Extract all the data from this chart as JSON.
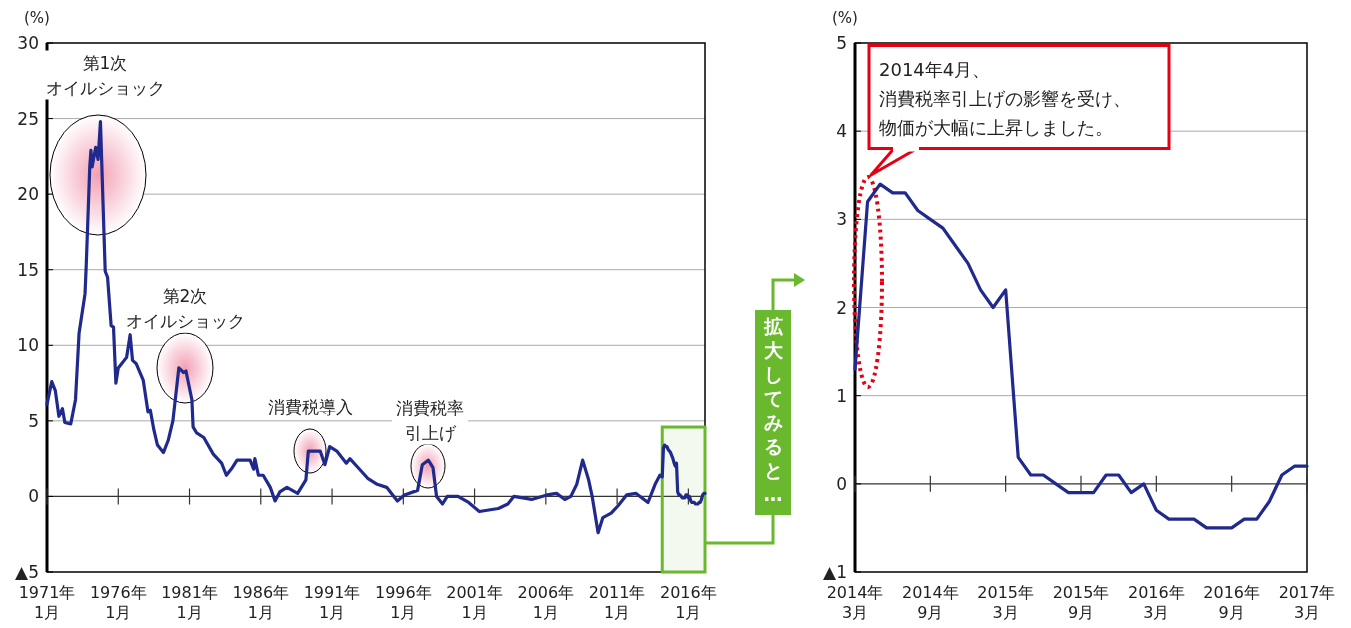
{
  "chart_data": [
    {
      "type": "line",
      "ylabel": "(%)",
      "xlim": [
        "1971-01",
        "2017-03"
      ],
      "ylim": [
        -5,
        30
      ],
      "yticks": [
        {
          "value": -5,
          "label": "▲5"
        },
        0,
        5,
        10,
        15,
        20,
        25,
        30
      ],
      "xticks": [
        {
          "value": "1971-01",
          "label": "1971年\n1月"
        },
        {
          "value": "1976-01",
          "label": "1976年\n1月"
        },
        {
          "value": "1981-01",
          "label": "1981年\n1月"
        },
        {
          "value": "1986-01",
          "label": "1986年\n1月"
        },
        {
          "value": "1991-01",
          "label": "1991年\n1月"
        },
        {
          "value": "1996-01",
          "label": "1996年\n1月"
        },
        {
          "value": "2001-01",
          "label": "2001年\n1月"
        },
        {
          "value": "2006-01",
          "label": "2006年\n1月"
        },
        {
          "value": "2011-01",
          "label": "2011年\n1月"
        },
        {
          "value": "2016-01",
          "label": "2016年\n1月"
        }
      ],
      "grid": "y",
      "series": [
        {
          "color": "#1f2a8c",
          "x": [
            "1971-01",
            "1971-05",
            "1971-08",
            "1971-11",
            "1972-02",
            "1972-04",
            "1972-09",
            "1973-01",
            "1973-04",
            "1973-09",
            "1973-10",
            "1974-01",
            "1974-02",
            "1974-03",
            "1974-06",
            "1974-08",
            "1974-10",
            "1974-11",
            "1975-02",
            "1975-04",
            "1975-07",
            "1975-09",
            "1975-11",
            "1976-01",
            "1976-08",
            "1976-11",
            "1977-01",
            "1977-04",
            "1977-10",
            "1978-02",
            "1978-04",
            "1978-07",
            "1978-10",
            "1979-03",
            "1979-07",
            "1979-11",
            "1980-04",
            "1980-08",
            "1980-10",
            "1981-03",
            "1981-04",
            "1981-07",
            "1982-01",
            "1982-09",
            "1983-04",
            "1983-08",
            "1984-01",
            "1984-05",
            "1985-04",
            "1985-07",
            "1985-08",
            "1985-11",
            "1986-03",
            "1986-09",
            "1987-01",
            "1987-05",
            "1987-11",
            "1988-08",
            "1989-03",
            "1989-05",
            "1990-03",
            "1990-07",
            "1990-11",
            "1991-05",
            "1992-01",
            "1992-04",
            "1992-11",
            "1993-07",
            "1994-03",
            "1994-11",
            "1995-08",
            "1996-02",
            "1997-01",
            "1997-05",
            "1997-10",
            "1998-02",
            "1998-05",
            "1998-10",
            "1999-02",
            "1999-11",
            "2000-08",
            "2001-05",
            "2002-09",
            "2003-05",
            "2003-10",
            "2005-01",
            "2006-02",
            "2006-10",
            "2007-05",
            "2007-10",
            "2008-03",
            "2008-08",
            "2009-01",
            "2009-04",
            "2009-09",
            "2010-01",
            "2010-08",
            "2011-02",
            "2011-09",
            "2012-05",
            "2013-03",
            "2013-09",
            "2014-01",
            "2014-03",
            "2014-04",
            "2014-05",
            "2014-06",
            "2014-07",
            "2014-08",
            "2014-09",
            "2014-10",
            "2014-11",
            "2014-12",
            "2015-01",
            "2015-02",
            "2015-03",
            "2015-04",
            "2015-05",
            "2015-06",
            "2015-07",
            "2015-08",
            "2015-09",
            "2015-10",
            "2015-11",
            "2015-12",
            "2016-01",
            "2016-02",
            "2016-03",
            "2016-04",
            "2016-05",
            "2016-06",
            "2016-07",
            "2016-08",
            "2016-09",
            "2016-10",
            "2016-11",
            "2016-12",
            "2017-01",
            "2017-02",
            "2017-03"
          ],
          "values": [
            6.1,
            7.6,
            7.0,
            5.3,
            5.8,
            4.9,
            4.8,
            6.4,
            10.8,
            13.4,
            15.2,
            21.8,
            22.9,
            21.8,
            23.1,
            22.3,
            24.8,
            22.3,
            14.9,
            14.5,
            11.3,
            11.2,
            7.5,
            8.5,
            9.2,
            10.7,
            9.0,
            8.8,
            7.7,
            5.6,
            5.7,
            4.4,
            3.4,
            2.9,
            3.7,
            5.0,
            8.5,
            8.2,
            8.3,
            6.4,
            4.6,
            4.2,
            3.9,
            2.8,
            2.2,
            1.4,
            1.9,
            2.4,
            2.4,
            1.8,
            2.5,
            1.4,
            1.4,
            0.6,
            -0.3,
            0.3,
            0.6,
            0.2,
            1.1,
            3.0,
            3.0,
            2.1,
            3.3,
            3.0,
            2.2,
            2.5,
            1.9,
            1.2,
            0.8,
            0.6,
            -0.3,
            0.1,
            0.4,
            2.1,
            2.4,
            1.9,
            0.0,
            -0.5,
            0.0,
            0.0,
            -0.4,
            -1.0,
            -0.8,
            -0.5,
            0.0,
            -0.2,
            0.1,
            0.2,
            -0.2,
            0.0,
            0.8,
            2.4,
            1.1,
            0.0,
            -2.4,
            -1.4,
            -1.1,
            -0.6,
            0.1,
            0.2,
            -0.4,
            0.8,
            1.4,
            1.3,
            3.2,
            3.4,
            3.3,
            3.3,
            3.1,
            3.0,
            2.9,
            2.7,
            2.5,
            2.2,
            2.0,
            2.2,
            0.3,
            0.1,
            0.1,
            0.0,
            -0.1,
            -0.1,
            -0.1,
            0.1,
            0.1,
            -0.1,
            0.0,
            -0.3,
            -0.4,
            -0.4,
            -0.4,
            -0.5,
            -0.5,
            -0.5,
            -0.4,
            -0.4,
            -0.2,
            0.1,
            0.2,
            0.2
          ]
        }
      ],
      "bands": [
        {
          "axis": "x",
          "from": "2014-03",
          "to": "2017-03",
          "color": "#6ab82e"
        }
      ],
      "annotations": [
        "第1次オイルショック",
        "第2次オイルショック",
        "消費税導入",
        "消費税率引上げ",
        "拡大してみると…"
      ]
    },
    {
      "type": "line",
      "ylabel": "(%)",
      "xlim": [
        "2014-03",
        "2017-03"
      ],
      "ylim": [
        -1,
        5
      ],
      "yticks": [
        {
          "value": -1,
          "label": "▲1"
        },
        0,
        1,
        2,
        3,
        4,
        5
      ],
      "xticks": [
        {
          "value": "2014-03",
          "label": "2014年\n3月"
        },
        {
          "value": "2014-09",
          "label": "2014年\n9月"
        },
        {
          "value": "2015-03",
          "label": "2015年\n3月"
        },
        {
          "value": "2015-09",
          "label": "2015年\n9月"
        },
        {
          "value": "2016-03",
          "label": "2016年\n3月"
        },
        {
          "value": "2016-09",
          "label": "2016年\n9月"
        },
        {
          "value": "2017-03",
          "label": "2017年\n3月"
        }
      ],
      "grid": "y",
      "series": [
        {
          "color": "#1f2a8c",
          "x": [
            "2014-03",
            "2014-04",
            "2014-05",
            "2014-06",
            "2014-07",
            "2014-08",
            "2014-09",
            "2014-10",
            "2014-11",
            "2014-12",
            "2015-01",
            "2015-02",
            "2015-03",
            "2015-04",
            "2015-05",
            "2015-06",
            "2015-07",
            "2015-08",
            "2015-09",
            "2015-10",
            "2015-11",
            "2015-12",
            "2016-01",
            "2016-02",
            "2016-03",
            "2016-04",
            "2016-05",
            "2016-06",
            "2016-07",
            "2016-08",
            "2016-09",
            "2016-10",
            "2016-11",
            "2016-12",
            "2017-01",
            "2017-02",
            "2017-03"
          ],
          "values": [
            1.3,
            3.2,
            3.4,
            3.3,
            3.3,
            3.1,
            3.0,
            2.9,
            2.7,
            2.5,
            2.2,
            2.0,
            2.2,
            0.3,
            0.1,
            0.1,
            0.0,
            -0.1,
            -0.1,
            -0.1,
            0.1,
            0.1,
            -0.1,
            0.0,
            -0.3,
            -0.4,
            -0.4,
            -0.4,
            -0.5,
            -0.5,
            -0.5,
            -0.4,
            -0.4,
            -0.2,
            0.1,
            0.2,
            0.2
          ]
        }
      ],
      "annotations": [
        "2014年4月、消費税率引上げの影響を受け、物価が大幅に上昇しました。"
      ]
    }
  ]
}
